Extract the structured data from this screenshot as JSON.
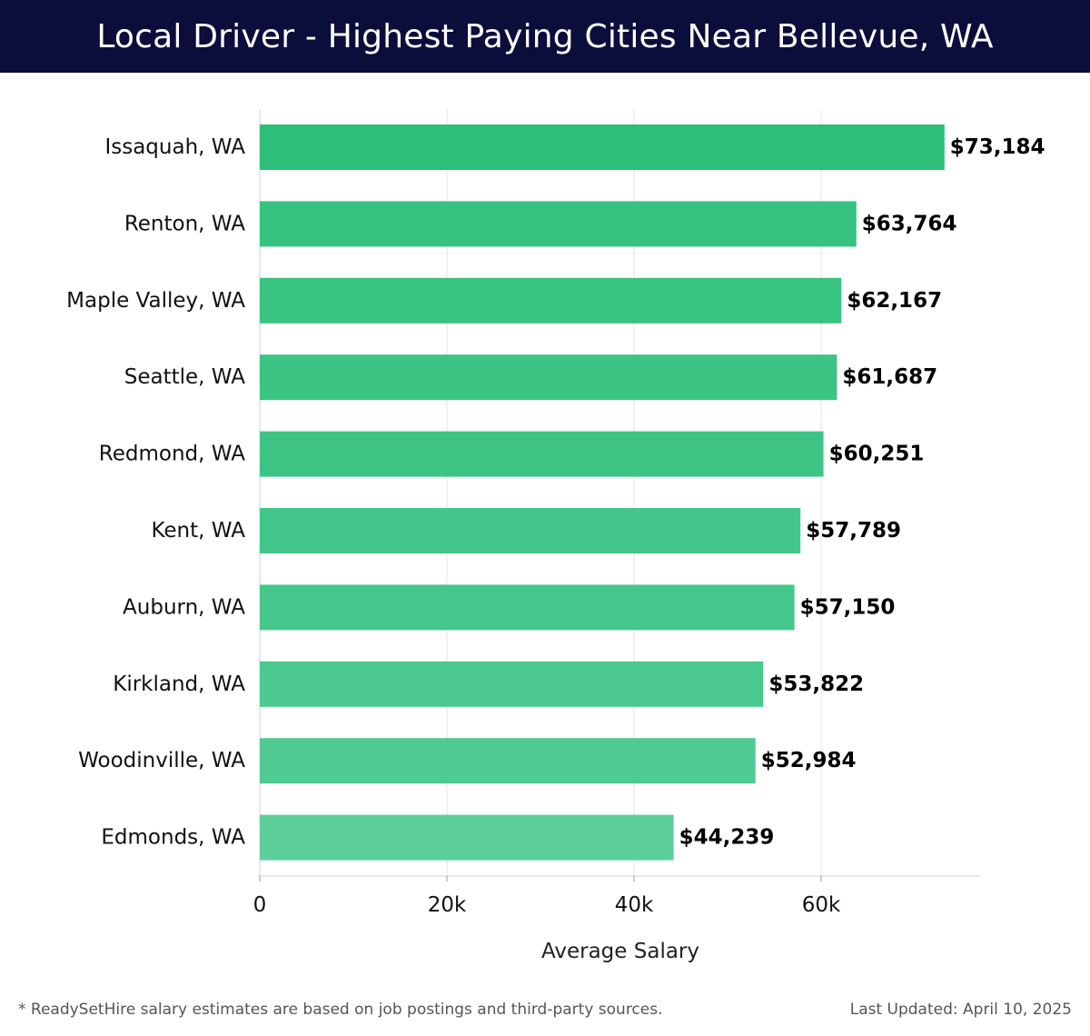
{
  "header": {
    "title": "Local Driver - Highest Paying Cities Near Bellevue, WA"
  },
  "chart_data": {
    "type": "bar",
    "orientation": "horizontal",
    "title": "Local Driver - Highest Paying Cities Near Bellevue, WA",
    "xlabel": "Average Salary",
    "ylabel": "",
    "xlim": [
      0,
      77000
    ],
    "x_ticks": [
      0,
      20000,
      40000,
      60000
    ],
    "x_tick_labels": [
      "0",
      "20k",
      "40k",
      "60k"
    ],
    "grid": "vertical",
    "categories": [
      "Issaquah, WA",
      "Renton, WA",
      "Maple Valley, WA",
      "Seattle, WA",
      "Redmond, WA",
      "Kent, WA",
      "Auburn, WA",
      "Kirkland, WA",
      "Woodinville, WA",
      "Edmonds, WA"
    ],
    "values": [
      73184,
      63764,
      62167,
      61687,
      60251,
      57789,
      57150,
      53822,
      52984,
      44239
    ],
    "value_labels": [
      "$73,184",
      "$63,764",
      "$62,167",
      "$61,687",
      "$60,251",
      "$57,789",
      "$57,150",
      "$53,822",
      "$52,984",
      "$44,239"
    ],
    "bar_colors": [
      "#2dbe78",
      "#36c27f",
      "#38c381",
      "#3bc483",
      "#3ec586",
      "#42c689",
      "#45c78b",
      "#4bc98f",
      "#4fca92",
      "#5ccf9b"
    ]
  },
  "footer": {
    "note": "* ReadySetHire salary estimates are based on job postings and third-party sources.",
    "updated": "Last Updated: April 10, 2025"
  }
}
